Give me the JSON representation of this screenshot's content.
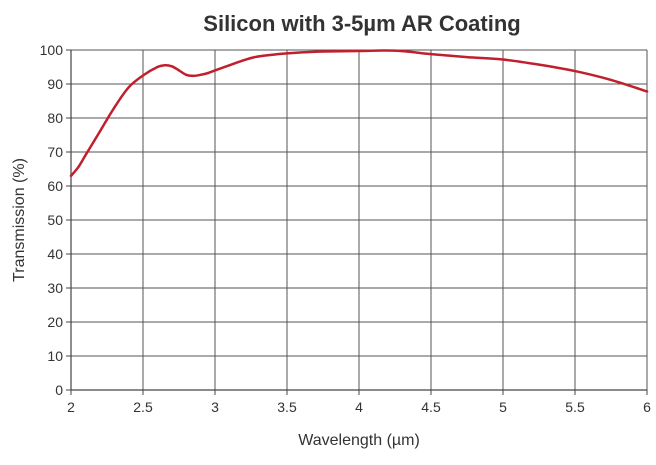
{
  "chart_data": {
    "type": "line",
    "title": "Silicon with 3-5µm AR Coating",
    "xlabel": "Wavelength (µm)",
    "ylabel": "Transmission (%)",
    "xlim": [
      2,
      6
    ],
    "ylim": [
      0,
      100
    ],
    "xticks": [
      "2",
      "2.5",
      "3",
      "3.5",
      "4",
      "4.5",
      "5",
      "5.5",
      "6"
    ],
    "yticks": [
      "0",
      "10",
      "20",
      "30",
      "40",
      "50",
      "60",
      "70",
      "80",
      "90",
      "100"
    ],
    "grid": "horizontal",
    "legend": "none",
    "series": [
      {
        "color": "#c0202e",
        "x": [
          2.0,
          2.05,
          2.1,
          2.2,
          2.3,
          2.4,
          2.5,
          2.6,
          2.65,
          2.7,
          2.75,
          2.8,
          2.85,
          2.9,
          2.95,
          3.0,
          3.1,
          3.2,
          3.3,
          3.5,
          3.7,
          4.0,
          4.25,
          4.5,
          4.75,
          5.0,
          5.25,
          5.5,
          5.75,
          6.0
        ],
        "y": [
          63,
          65.5,
          69,
          76,
          83,
          89,
          92.5,
          95,
          95.5,
          95.2,
          94,
          92.7,
          92.4,
          92.7,
          93.2,
          94,
          95.5,
          97,
          98.1,
          99,
          99.5,
          99.7,
          99.8,
          98.8,
          97.9,
          97.2,
          95.7,
          93.8,
          91.2,
          87.8
        ]
      }
    ]
  }
}
